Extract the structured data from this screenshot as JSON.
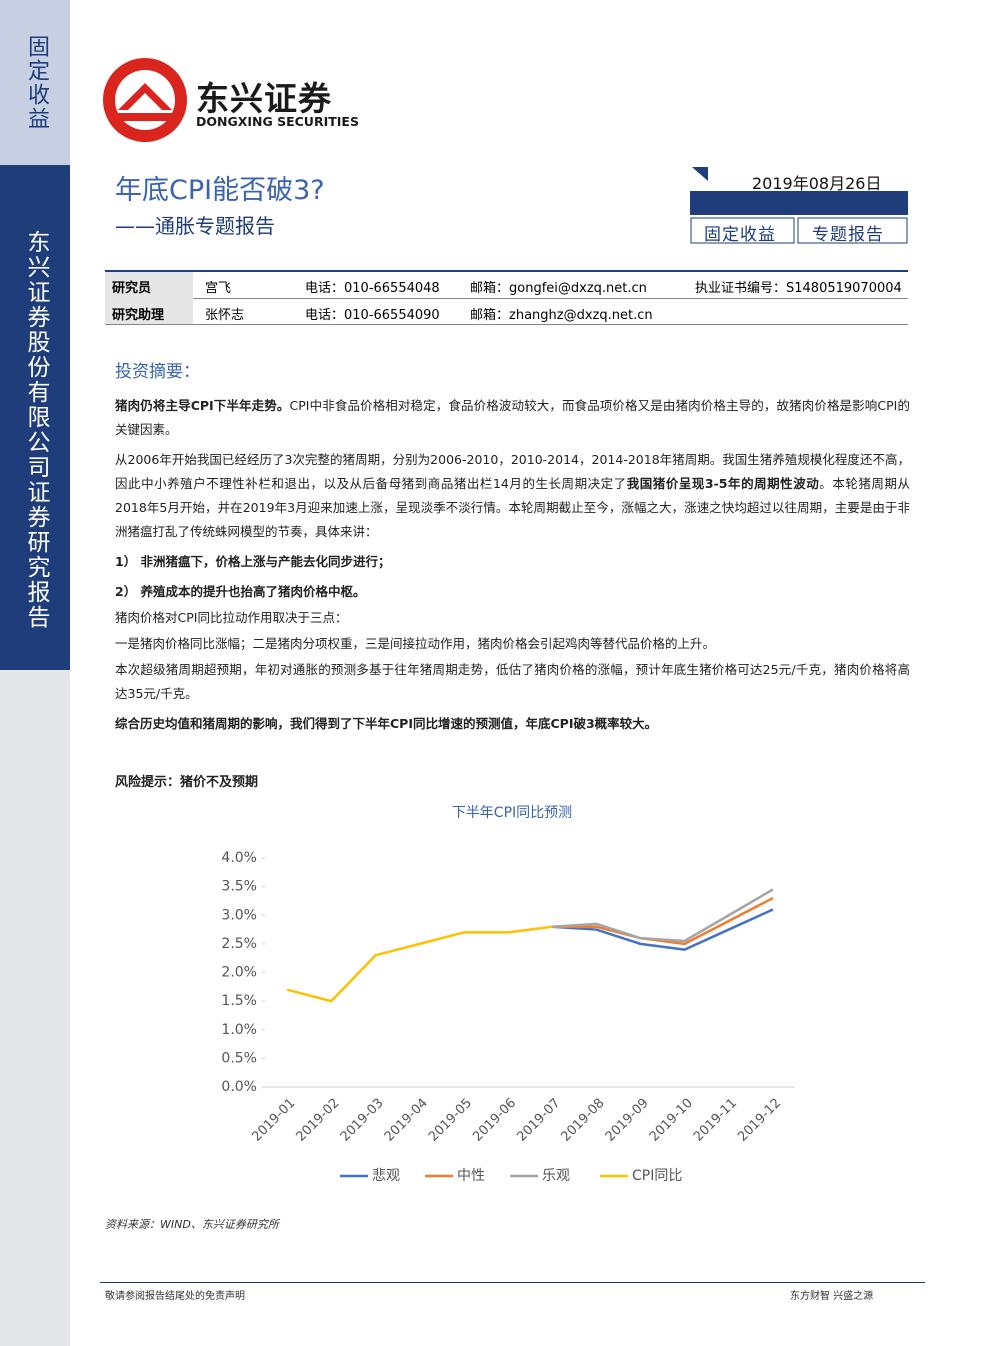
{
  "sidebar": {
    "top": "固定收益",
    "middle": "东兴证券股份有限公司证券研究报告"
  },
  "logo": {
    "name": "东兴证券",
    "english": "DONGXING SECURITIES"
  },
  "header": {
    "title": "年底CPI能否破3?",
    "subtitle": "——通胀专题报告",
    "date": "2019年08月26日",
    "tags": [
      "固定收益",
      "专题报告"
    ]
  },
  "info_table": {
    "rows": [
      [
        "研究员",
        "宫飞",
        "电话：010-66554048",
        "邮箱：gongfei@dxzq.net.cn",
        "执业证书编号：S1480519070004"
      ],
      [
        "研究助理",
        "张怀志",
        "电话：010-66554090",
        "邮箱：zhanghz@dxzq.net.cn"
      ]
    ]
  },
  "summary": {
    "heading": "投资摘要：",
    "paragraphs": [
      {
        "segments": [
          {
            "text": "猪肉仍将主导CPI下半年走势。",
            "bold": true
          },
          {
            "text": "CPI中非食品价格相对稳定，食品价格波动较大，而食品项价格又是由猪肉价格主导的，故猪肉价格是影响CPI的关键因素。",
            "bold": false
          }
        ]
      },
      {
        "segments": [
          {
            "text": "从2006年开始我国已经经历了3次完整的猪周期，分别为2006-2010，2010-2014，2014-2018年猪周期。我国生猪养殖规模化程度还不高，因此中小养殖户不理性补栏和退出，以及从后备母猪到商品猪出栏14月的生长周期决定了",
            "bold": false
          },
          {
            "text": "我国猪价呈现3-5年的周期性波动",
            "bold": true
          },
          {
            "text": "。本轮猪周期从2018年5月开始，并在2019年3月迎来加速上涨，呈现淡季不淡行情。本轮周期截止至今，涨幅之大，涨速之快均超过以往周期，主要是由于非洲猪瘟打乱了传统蛛网模型的节奏，具体来讲：",
            "bold": false
          }
        ]
      },
      {
        "segments": [
          {
            "text": "1）  非洲猪瘟下，价格上涨与产能去化同步进行；",
            "bold": true
          }
        ]
      },
      {
        "segments": [
          {
            "text": "2）  养殖成本的提升也抬高了猪肉价格中枢。",
            "bold": true
          }
        ]
      },
      {
        "segments": [
          {
            "text": "猪肉价格对CPI同比拉动作用取决于三点：",
            "bold": false
          }
        ]
      },
      {
        "segments": [
          {
            "text": "一是猪肉价格同比涨幅；二是猪肉分项权重，三是间接拉动作用，猪肉价格会引起鸡肉等替代品价格的上升。",
            "bold": false
          }
        ]
      },
      {
        "segments": [
          {
            "text": "本次超级猪周期超预期，年初对通胀的预测多基于往年猪周期走势，低估了猪肉价格的涨幅，预计年底生猪价格可达25元/千克，猪肉价格将高达35元/千克。",
            "bold": false
          }
        ]
      },
      {
        "segments": [
          {
            "text": "综合历史均值和猪周期的影响，我们得到了下半年CPI同比增速的预测值，年底CPI破3概率较大。",
            "bold": true
          }
        ]
      }
    ],
    "risk": "风险提示：猪价不及预期"
  },
  "chart_data": {
    "type": "line",
    "title": "下半年CPI同比预测",
    "categories": [
      "2019-01",
      "2019-02",
      "2019-03",
      "2019-04",
      "2019-05",
      "2019-06",
      "2019-07",
      "2019-08",
      "2019-09",
      "2019-10",
      "2019-11",
      "2019-12"
    ],
    "series": [
      {
        "name": "悲观",
        "color": "#4472c4",
        "values": [
          null,
          null,
          null,
          null,
          null,
          null,
          2.8,
          2.75,
          2.5,
          2.4,
          2.75,
          3.1
        ]
      },
      {
        "name": "中性",
        "color": "#ed7d31",
        "values": [
          null,
          null,
          null,
          null,
          null,
          null,
          2.8,
          2.8,
          2.6,
          2.5,
          2.9,
          3.3
        ]
      },
      {
        "name": "乐观",
        "color": "#a5a5a5",
        "values": [
          null,
          null,
          null,
          null,
          null,
          null,
          2.8,
          2.85,
          2.6,
          2.55,
          3.0,
          3.45
        ]
      },
      {
        "name": "CPI同比",
        "color": "#ffc000",
        "values": [
          1.7,
          1.5,
          2.3,
          2.5,
          2.7,
          2.7,
          2.8,
          null,
          null,
          null,
          null,
          null
        ]
      }
    ],
    "ylim": [
      0,
      4
    ],
    "yticks": [
      {
        "value": 0,
        "label": "0.0%"
      },
      {
        "value": 0.5,
        "label": "0.5%"
      },
      {
        "value": 1,
        "label": "1.0%"
      },
      {
        "value": 1.5,
        "label": "1.5%"
      },
      {
        "value": 2,
        "label": "2.0%"
      },
      {
        "value": 2.5,
        "label": "2.5%"
      },
      {
        "value": 3,
        "label": "3.0%"
      },
      {
        "value": 3.5,
        "label": "3.5%"
      },
      {
        "value": 4,
        "label": "4.0%"
      }
    ]
  },
  "source": "资料来源：WIND、东兴证券研究所",
  "footer": {
    "left": "敬请参阅报告结尾处的免责声明",
    "right": "东方财智 兴盛之源"
  }
}
